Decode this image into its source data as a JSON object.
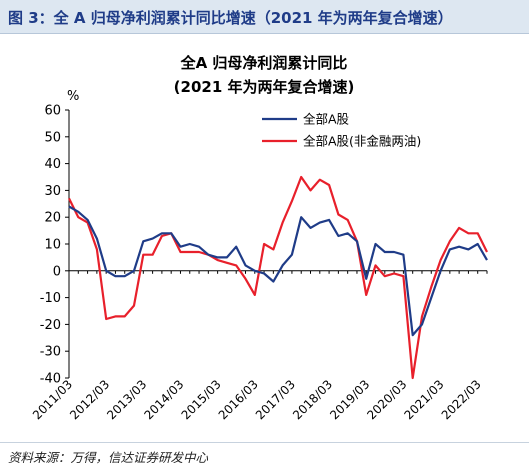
{
  "figure": {
    "label": "图 3：全 A 归母净利润累计同比增速（2021 年为两年复合增速）",
    "source": "资料来源：万得，信达证券研发中心"
  },
  "chart_data": {
    "type": "line",
    "title": [
      "全A 归母净利润累计同比",
      "(2021 年为两年复合增速)"
    ],
    "ylabel": "%",
    "xlabel": "",
    "ylim": [
      -40,
      60
    ],
    "yticks": [
      -40,
      -30,
      -20,
      -10,
      0,
      10,
      20,
      30,
      40,
      50,
      60
    ],
    "xlim": [
      0,
      45
    ],
    "xtick_labels": [
      "2011/03",
      "2012/03",
      "2013/03",
      "2014/03",
      "2015/03",
      "2016/03",
      "2017/03",
      "2018/03",
      "2019/03",
      "2020/03",
      "2021/03",
      "2022/03"
    ],
    "grid": false,
    "legend_position": "top-right",
    "x": [
      "2011/03",
      "2011/06",
      "2011/09",
      "2011/12",
      "2012/03",
      "2012/06",
      "2012/09",
      "2012/12",
      "2013/03",
      "2013/06",
      "2013/09",
      "2013/12",
      "2014/03",
      "2014/06",
      "2014/09",
      "2014/12",
      "2015/03",
      "2015/06",
      "2015/09",
      "2015/12",
      "2016/03",
      "2016/06",
      "2016/09",
      "2016/12",
      "2017/03",
      "2017/06",
      "2017/09",
      "2017/12",
      "2018/03",
      "2018/06",
      "2018/09",
      "2018/12",
      "2019/03",
      "2019/06",
      "2019/09",
      "2019/12",
      "2020/03",
      "2020/06",
      "2020/09",
      "2020/12",
      "2021/03",
      "2021/06",
      "2021/09",
      "2021/12",
      "2022/03",
      "2022/06"
    ],
    "series": [
      {
        "name": "全部A股",
        "color": "#1f3c88",
        "values": [
          24,
          22,
          19,
          12,
          0,
          -2,
          -2,
          0,
          11,
          12,
          14,
          14,
          9,
          10,
          9,
          6,
          5,
          5,
          9,
          2,
          0,
          -1,
          -4,
          2,
          6,
          20,
          16,
          18,
          19,
          13,
          14,
          11,
          -3,
          10,
          7,
          7,
          6,
          -24,
          -20,
          -10,
          0,
          8,
          9,
          8,
          10,
          4
        ]
      },
      {
        "name": "全部A股(非金融两油)",
        "color": "#e8202b",
        "values": [
          27,
          20,
          18,
          8,
          -18,
          -17,
          -17,
          -13,
          6,
          6,
          13,
          14,
          7,
          7,
          7,
          6,
          4,
          3,
          2,
          -3,
          -9,
          10,
          8,
          18,
          26,
          35,
          30,
          34,
          32,
          21,
          19,
          11,
          -9,
          2,
          -2,
          -1,
          -2,
          -40,
          -17,
          -6,
          4,
          11,
          16,
          14,
          14,
          7
        ]
      }
    ]
  }
}
